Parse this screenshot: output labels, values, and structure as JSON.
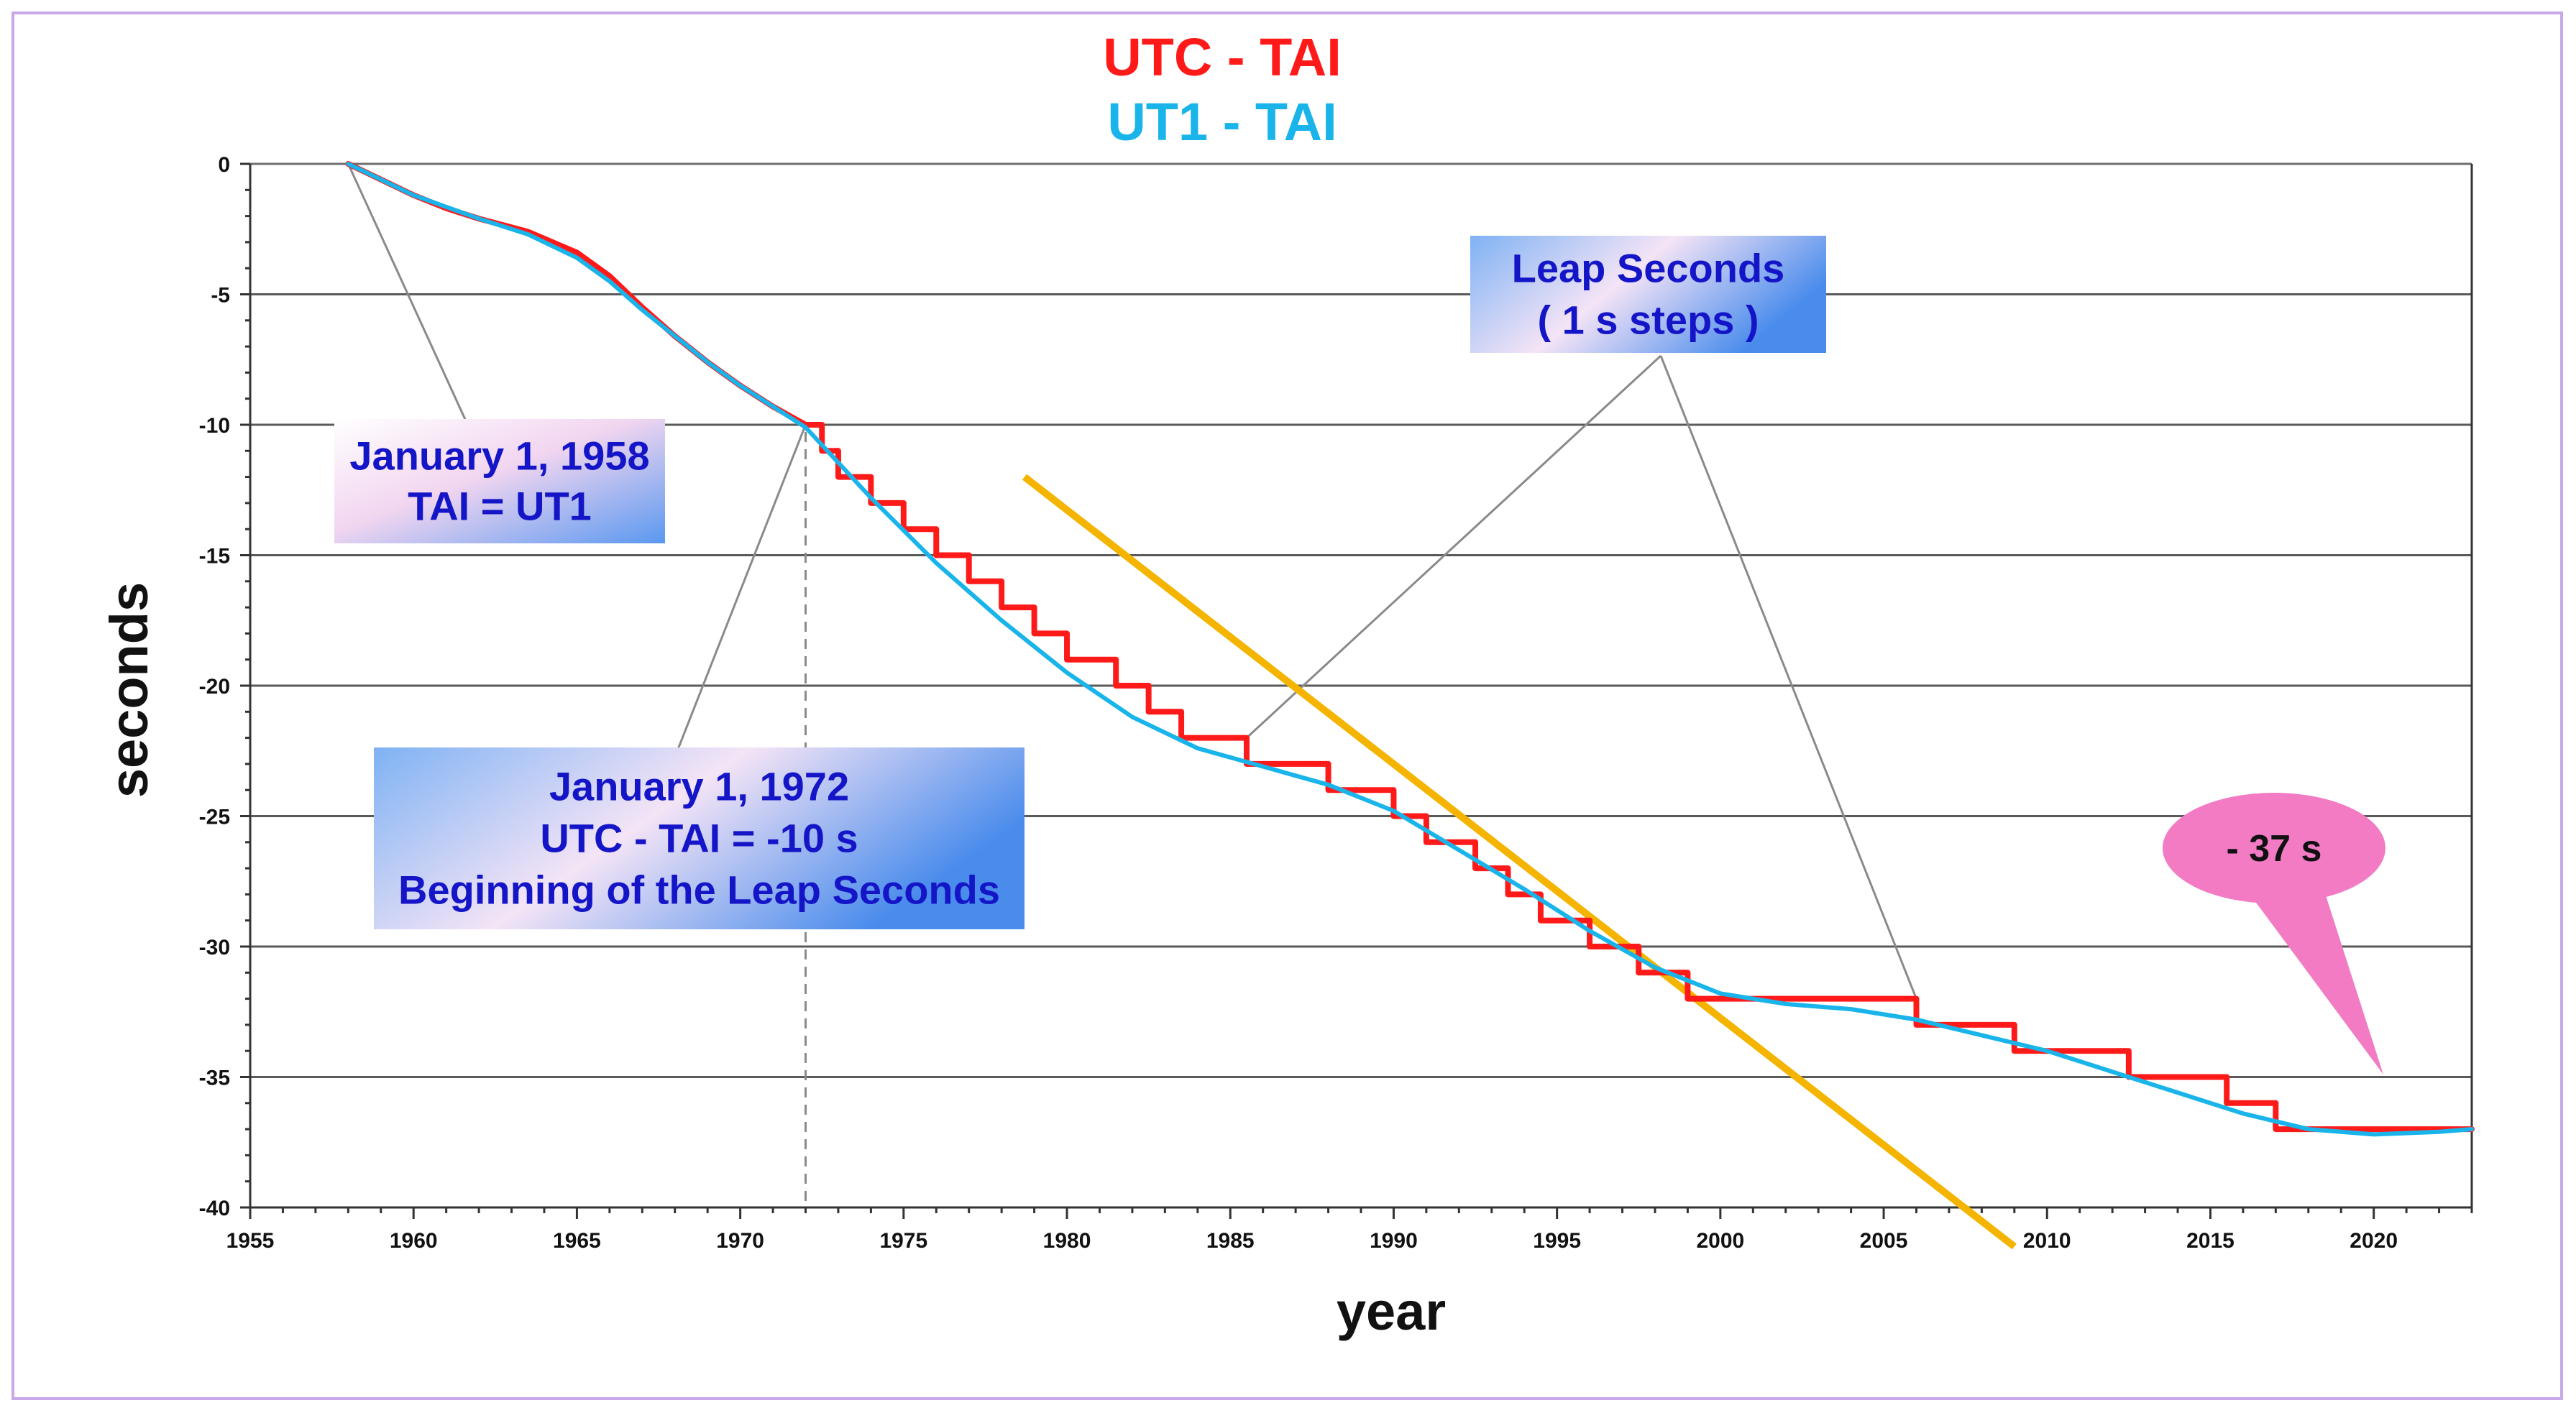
{
  "chart_data": {
    "type": "line",
    "title": "UTC - TAI / UT1 - TAI",
    "xlabel": "year",
    "ylabel": "seconds",
    "xlim": [
      1955,
      2023
    ],
    "ylim": [
      -40,
      0
    ],
    "xticks": [
      1955,
      1960,
      1965,
      1970,
      1975,
      1980,
      1985,
      1990,
      1995,
      2000,
      2005,
      2010,
      2015,
      2020
    ],
    "yticks": [
      0,
      -5,
      -10,
      -15,
      -20,
      -25,
      -30,
      -35,
      -40
    ],
    "grid": true,
    "legend": [
      {
        "name": "UTC - TAI",
        "color": "#ff1a1a"
      },
      {
        "name": "UT1 - TAI",
        "color": "#19b4ea"
      }
    ],
    "series": [
      {
        "name": "UTC - TAI",
        "color": "#ff1a1a",
        "style": "step",
        "x": [
          1958.0,
          1960.0,
          1961.0,
          1962.0,
          1963.5,
          1965.0,
          1966.0,
          1967.0,
          1968.0,
          1969.0,
          1970.0,
          1971.0,
          1972.0,
          1972.5,
          1973.0,
          1974.0,
          1975.0,
          1976.0,
          1977.0,
          1978.0,
          1979.0,
          1980.0,
          1981.5,
          1982.5,
          1983.5,
          1985.5,
          1988.0,
          1990.0,
          1991.0,
          1992.5,
          1993.5,
          1994.5,
          1996.0,
          1997.5,
          1999.0,
          2006.0,
          2009.0,
          2012.5,
          2015.5,
          2017.0,
          2023.0
        ],
        "y": [
          0.0,
          -1.2,
          -1.7,
          -2.1,
          -2.6,
          -3.4,
          -4.3,
          -5.5,
          -6.6,
          -7.6,
          -8.5,
          -9.3,
          -10,
          -11,
          -12,
          -13,
          -14,
          -15,
          -16,
          -17,
          -18,
          -19,
          -20,
          -21,
          -22,
          -23,
          -24,
          -25,
          -26,
          -27,
          -28,
          -29,
          -30,
          -31,
          -32,
          -33,
          -34,
          -35,
          -36,
          -37,
          -37
        ]
      },
      {
        "name": "UT1 - TAI",
        "color": "#19b4ea",
        "style": "smooth",
        "x": [
          1958.0,
          1960.0,
          1962.0,
          1963.5,
          1965.0,
          1966.0,
          1967.0,
          1968.0,
          1969.0,
          1970.0,
          1971.0,
          1972.0,
          1974.0,
          1976.0,
          1978.0,
          1980.0,
          1982.0,
          1984.0,
          1986.0,
          1988.0,
          1990.0,
          1992.0,
          1994.0,
          1996.0,
          1998.0,
          2000.0,
          2002.0,
          2004.0,
          2006.0,
          2008.0,
          2010.0,
          2012.0,
          2014.0,
          2016.0,
          2018.0,
          2020.0,
          2022.0,
          2023.0
        ],
        "y": [
          0.0,
          -1.2,
          -2.1,
          -2.7,
          -3.6,
          -4.5,
          -5.6,
          -6.6,
          -7.6,
          -8.5,
          -9.3,
          -10.1,
          -12.8,
          -15.3,
          -17.5,
          -19.5,
          -21.2,
          -22.4,
          -23.1,
          -23.8,
          -24.8,
          -26.3,
          -27.8,
          -29.4,
          -30.8,
          -31.8,
          -32.2,
          -32.4,
          -32.8,
          -33.4,
          -34.0,
          -34.8,
          -35.6,
          -36.4,
          -37.0,
          -37.2,
          -37.1,
          -37.0
        ]
      }
    ],
    "trend_line": {
      "color": "#f5b400",
      "x": [
        1978.7,
        2009.0
      ],
      "y": [
        -12.0,
        -41.5
      ]
    },
    "annotations": {
      "tai_ut1": {
        "lines": [
          "January 1, 1958",
          "TAI = UT1"
        ],
        "x": 1958,
        "y": 0
      },
      "leap_start": {
        "lines": [
          "January 1, 1972",
          "UTC - TAI  = -10 s",
          "Beginning of the Leap Seconds"
        ],
        "x": 1972,
        "y": -10
      },
      "leap_seconds": {
        "lines": [
          "Leap Seconds",
          "( 1 s steps )"
        ],
        "targets": [
          {
            "x": 1985.5,
            "y": -22
          },
          {
            "x": 2006,
            "y": -32
          }
        ]
      },
      "callout": {
        "text": "- 37 s",
        "x": 2020,
        "y": -35
      }
    }
  }
}
